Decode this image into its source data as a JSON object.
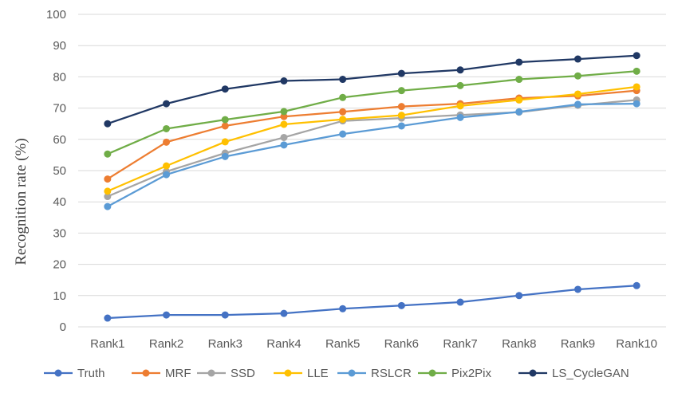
{
  "chart_data": {
    "type": "line",
    "title": "",
    "xlabel": "",
    "ylabel": "Recognition rate (%)",
    "ylim": [
      0,
      100
    ],
    "yticks": [
      "0",
      "10",
      "20",
      "30",
      "40",
      "50",
      "60",
      "70",
      "80",
      "90",
      "100"
    ],
    "categories": [
      "Rank1",
      "Rank2",
      "Rank3",
      "Rank4",
      "Rank5",
      "Rank6",
      "Rank7",
      "Rank8",
      "Rank9",
      "Rank10"
    ],
    "grid": "horizontal",
    "legend_position": "bottom",
    "series": [
      {
        "name": "Truth",
        "color": "#4472c4",
        "values": [
          2.8,
          3.8,
          3.8,
          4.3,
          5.8,
          6.8,
          7.9,
          10.0,
          12.0,
          13.2
        ]
      },
      {
        "name": "MRF",
        "color": "#ed7d31",
        "values": [
          47.3,
          59.1,
          64.3,
          67.3,
          68.8,
          70.5,
          71.4,
          73.2,
          73.9,
          75.6
        ]
      },
      {
        "name": "SSD",
        "color": "#a5a5a5",
        "values": [
          41.7,
          49.7,
          55.6,
          60.6,
          65.9,
          66.8,
          67.8,
          68.7,
          70.9,
          72.6
        ]
      },
      {
        "name": "LLE",
        "color": "#ffc000",
        "values": [
          43.4,
          51.5,
          59.2,
          64.8,
          66.4,
          67.7,
          70.7,
          72.6,
          74.5,
          76.8
        ]
      },
      {
        "name": "RSLCR",
        "color": "#5b9bd5",
        "values": [
          38.5,
          48.7,
          54.5,
          58.2,
          61.7,
          64.3,
          67.0,
          68.8,
          71.2,
          71.4
        ]
      },
      {
        "name": "Pix2Pix",
        "color": "#70ad47",
        "values": [
          55.3,
          63.4,
          66.3,
          68.9,
          73.4,
          75.6,
          77.2,
          79.2,
          80.3,
          81.8
        ]
      },
      {
        "name": "LS_CycleGAN",
        "color": "#203864",
        "values": [
          65.0,
          71.4,
          76.1,
          78.7,
          79.2,
          81.1,
          82.2,
          84.7,
          85.7,
          86.8
        ]
      }
    ]
  }
}
